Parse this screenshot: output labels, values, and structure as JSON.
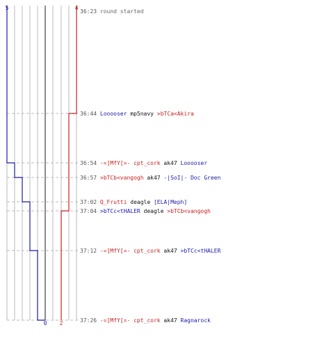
{
  "colors": {
    "blue": "#1a1aa6",
    "red": "#c81e1e",
    "time": "#555555",
    "weapon": "#111111",
    "system": "#666666",
    "grid": "#b8b8b8",
    "center": "#666666",
    "dash": "#bbbbbb"
  },
  "scores": {
    "blue_start": "5",
    "red_start": "4",
    "blue_end": "0",
    "red_end": "2"
  },
  "events": [
    {
      "time": "36:23",
      "type": "system",
      "text": "round started"
    },
    {
      "time": "36:44",
      "killer": "Looooser",
      "killer_team": "blue",
      "weapon": "mp5navy",
      "victim": ">bTCa<Akira",
      "victim_team": "red"
    },
    {
      "time": "36:54",
      "killer": "-=]MfY[=- cpt_cork",
      "killer_team": "red",
      "weapon": "ak47",
      "victim": "Looooser",
      "victim_team": "blue"
    },
    {
      "time": "36:57",
      "killer": ">bTCb<vangogh",
      "killer_team": "red",
      "weapon": "ak47",
      "victim": "-|SoI|- Doc Green",
      "victim_team": "blue"
    },
    {
      "time": "37:02",
      "killer": "Q_Frutti",
      "killer_team": "red",
      "weapon": "deagle",
      "victim": "[ELA|Meph]",
      "victim_team": "blue"
    },
    {
      "time": "37:04",
      "killer": ">bTCc<tHALER",
      "killer_team": "blue",
      "weapon": "deagle",
      "victim": ">bTCb<vangogh",
      "victim_team": "red"
    },
    {
      "time": "37:12",
      "killer": "-=]MfY[=- cpt_cork",
      "killer_team": "red",
      "weapon": "ak47",
      "victim": ">bTCc<tHALER",
      "victim_team": "blue"
    },
    {
      "time": "37:26",
      "killer": "-=]MfY[=- cpt_cork",
      "killer_team": "red",
      "weapon": "ak47",
      "victim": "Ragnarock",
      "victim_team": "blue"
    }
  ],
  "chart_data": {
    "type": "line",
    "series": [
      {
        "team": "blue",
        "start": 5,
        "steps": [
          5,
          5,
          4,
          3,
          2,
          2,
          1,
          0
        ]
      },
      {
        "team": "red",
        "start": 4,
        "steps": [
          4,
          3,
          3,
          3,
          3,
          2,
          2,
          2
        ]
      }
    ]
  }
}
